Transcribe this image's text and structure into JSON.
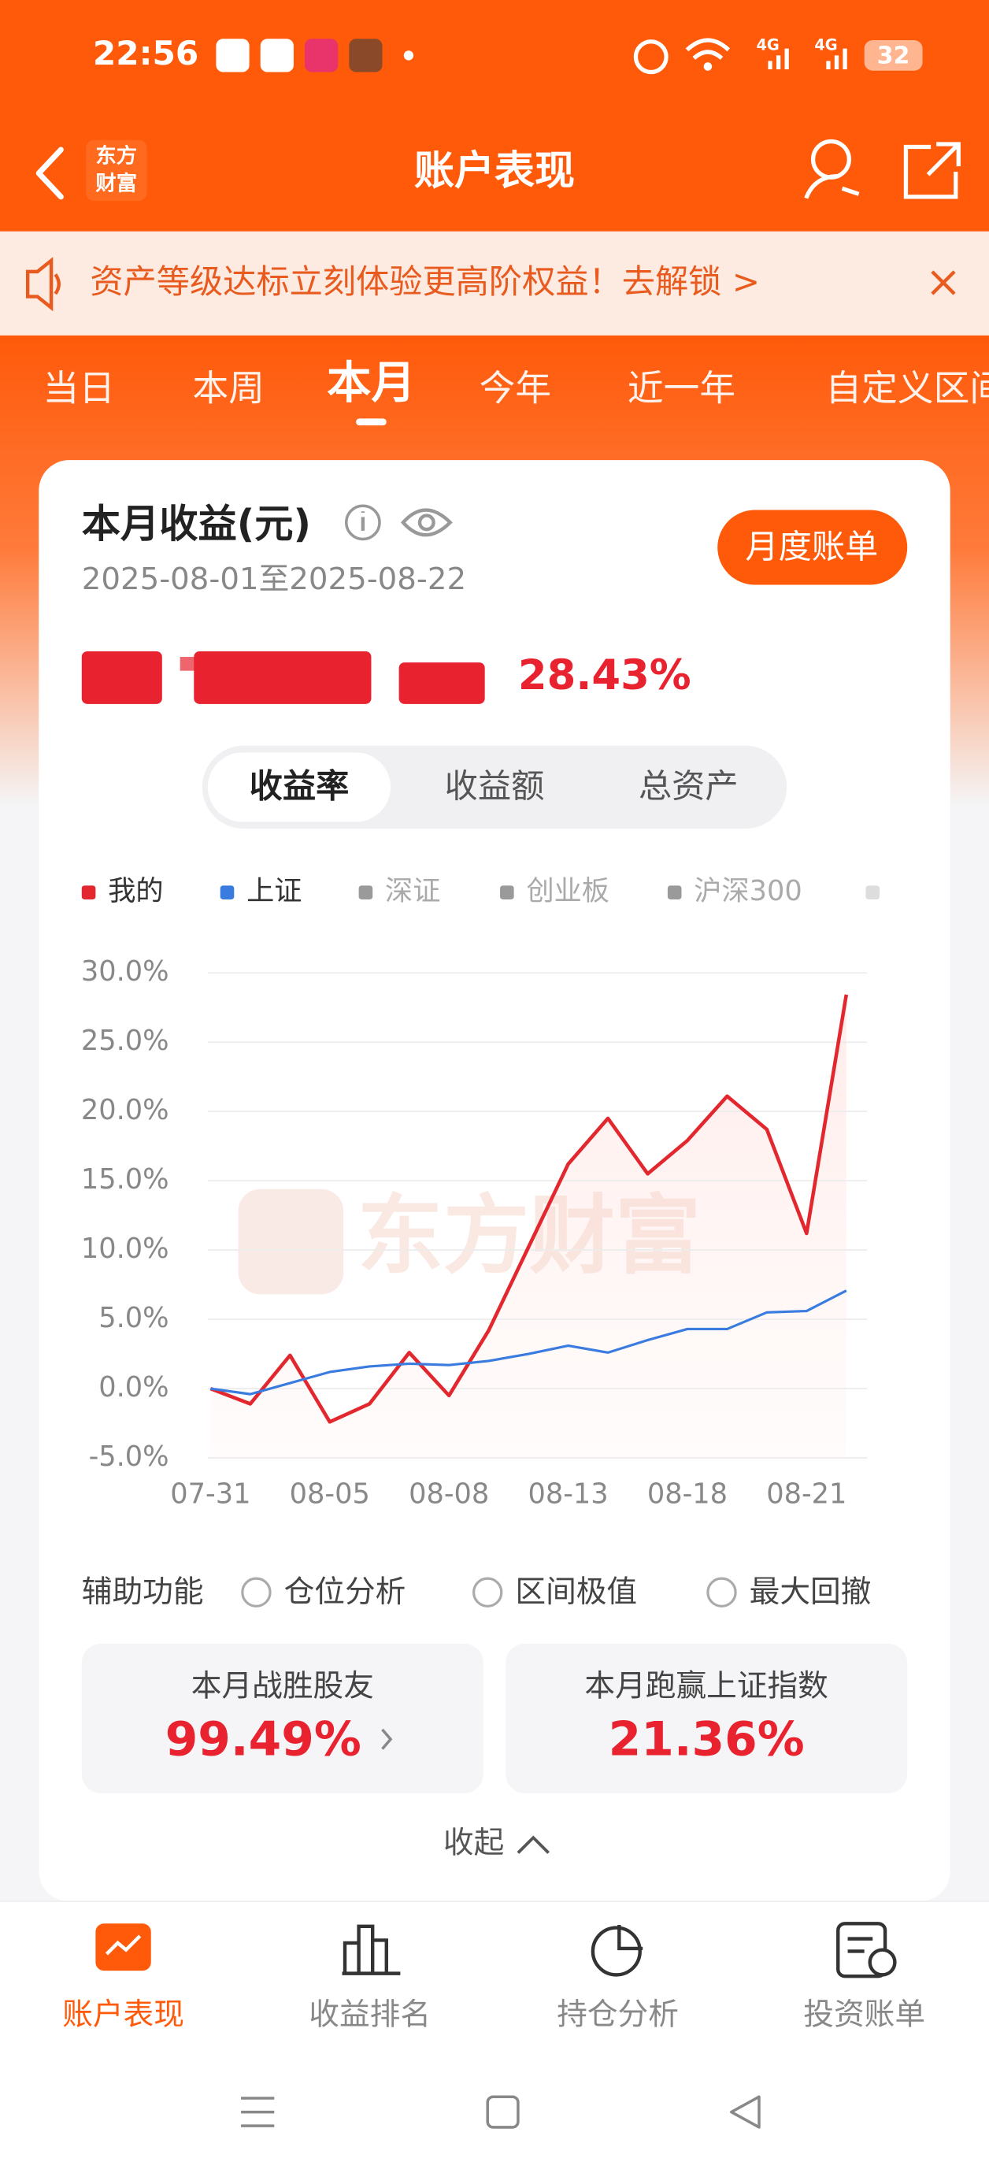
{
  "status_bar": {
    "time": "22:56",
    "network": [
      "4G",
      "4G"
    ],
    "battery": "32"
  },
  "header": {
    "title": "账户表现",
    "logo": [
      "东方",
      "财富"
    ]
  },
  "banner": {
    "text": "资产等级达标立刻体验更高阶权益！去解锁 >"
  },
  "tabs": {
    "items": [
      "当日",
      "本周",
      "本月",
      "今年",
      "近一年",
      "自定义区间"
    ],
    "active": 2
  },
  "card": {
    "title": "本月收益(元)",
    "date_range": "2025-08-01至2025-08-22",
    "button": "月度账单",
    "return_rate": "28.43%",
    "segments": [
      "收益率",
      "收益额",
      "总资产"
    ],
    "segment_active": 0
  },
  "chart_data": {
    "type": "line",
    "watermark": "东方财富",
    "categories": [
      "07-31",
      null,
      null,
      "08-05",
      null,
      null,
      "08-08",
      null,
      null,
      "08-13",
      null,
      null,
      "08-18",
      null,
      null,
      "08-21",
      null
    ],
    "series": [
      {
        "name": "我的",
        "color": "#e2282e",
        "values": [
          0.0,
          -1.1,
          2.4,
          -2.4,
          -1.1,
          2.6,
          -0.5,
          4.2,
          10.2,
          16.2,
          19.5,
          15.5,
          17.9,
          21.1,
          18.7,
          11.2,
          28.43
        ]
      },
      {
        "name": "上证",
        "color": "#3a7be0",
        "values": [
          0.0,
          -0.4,
          0.4,
          1.2,
          1.6,
          1.8,
          1.7,
          2.0,
          2.5,
          3.1,
          2.6,
          3.5,
          4.3,
          4.3,
          5.5,
          5.6,
          7.07
        ]
      }
    ],
    "inactive_legend": [
      {
        "name": "深证",
        "color": "#9a9a9a"
      },
      {
        "name": "创业板",
        "color": "#9a9a9a"
      },
      {
        "name": "沪深300",
        "color": "#9a9a9a"
      }
    ],
    "ylim": [
      -5,
      30
    ],
    "yticks": [
      {
        "value": 30,
        "label": "30.0%"
      },
      {
        "value": 25,
        "label": "25.0%"
      },
      {
        "value": 20,
        "label": "20.0%"
      },
      {
        "value": 15,
        "label": "15.0%"
      },
      {
        "value": 10,
        "label": "10.0%"
      },
      {
        "value": 5,
        "label": "5.0%"
      },
      {
        "value": 0,
        "label": "0.0%"
      },
      {
        "value": -5,
        "label": "-5.0%"
      }
    ],
    "grid": true
  },
  "tools": {
    "label": "辅助功能",
    "options": [
      "仓位分析",
      "区间极值",
      "最大回撤"
    ]
  },
  "stats": [
    {
      "label": "本月战胜股友",
      "value": "99.49%"
    },
    {
      "label": "本月跑赢上证指数",
      "value": "21.36%"
    }
  ],
  "collapse": "收起",
  "bottom_nav": {
    "items": [
      "账户表现",
      "收益排名",
      "持仓分析",
      "投资账单"
    ],
    "active": 0
  }
}
